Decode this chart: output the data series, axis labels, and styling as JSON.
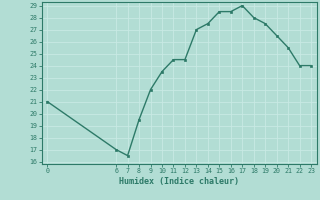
{
  "x": [
    0,
    6,
    7,
    8,
    9,
    10,
    11,
    12,
    13,
    14,
    15,
    16,
    17,
    18,
    19,
    20,
    21,
    22,
    23
  ],
  "y": [
    21,
    17,
    16.5,
    19.5,
    22,
    23.5,
    24.5,
    24.5,
    27,
    27.5,
    28.5,
    28.5,
    29,
    28,
    27.5,
    26.5,
    25.5,
    24,
    24
  ],
  "xlabel": "Humidex (Indice chaleur)",
  "ylim": [
    16,
    29
  ],
  "yticks": [
    16,
    17,
    18,
    19,
    20,
    21,
    22,
    23,
    24,
    25,
    26,
    27,
    28,
    29
  ],
  "xticks": [
    0,
    6,
    7,
    8,
    9,
    10,
    11,
    12,
    13,
    14,
    15,
    16,
    17,
    18,
    19,
    20,
    21,
    22,
    23
  ],
  "line_color": "#2d7a68",
  "marker_color": "#2d7a68",
  "bg_color": "#b2ddd4",
  "grid_color": "#c8eae4",
  "axis_color": "#2d7a68",
  "font_family": "monospace"
}
